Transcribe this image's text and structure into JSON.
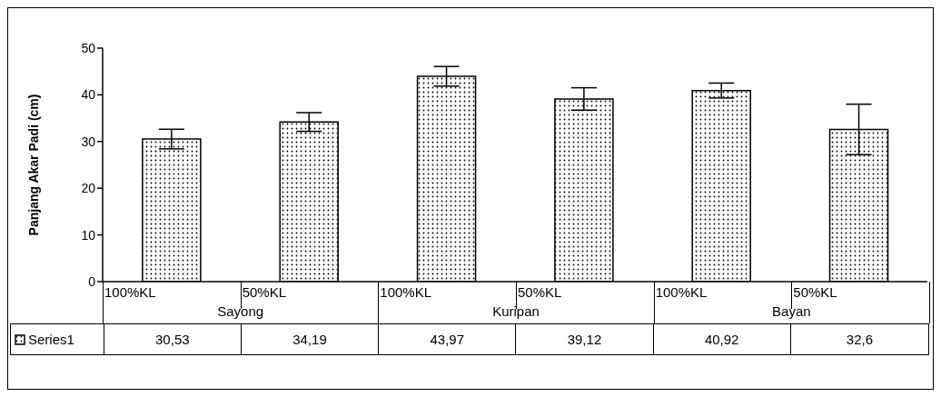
{
  "chart_data": {
    "type": "bar",
    "ylabel": "Panjang Akar Padi (cm)",
    "categories": [
      "100%KL",
      "50%KL",
      "100%KL",
      "50%KL",
      "100%KL",
      "50%KL"
    ],
    "annotations": [
      "Sayong",
      "Kuripan",
      "Bayan"
    ],
    "series": [
      {
        "name": "Series1",
        "color": "#000000",
        "values": [
          30.53,
          34.19,
          43.97,
          39.12,
          40.92,
          32.6
        ],
        "errors": [
          2.1,
          2.0,
          2.1,
          2.4,
          1.6,
          5.4
        ]
      }
    ],
    "value_labels": [
      "30,53",
      "34,19",
      "43,97",
      "39,12",
      "40,92",
      "32,6"
    ],
    "ylim": [
      0,
      50
    ],
    "yticks": [
      0,
      10,
      20,
      30,
      40,
      50
    ],
    "grid": false
  }
}
